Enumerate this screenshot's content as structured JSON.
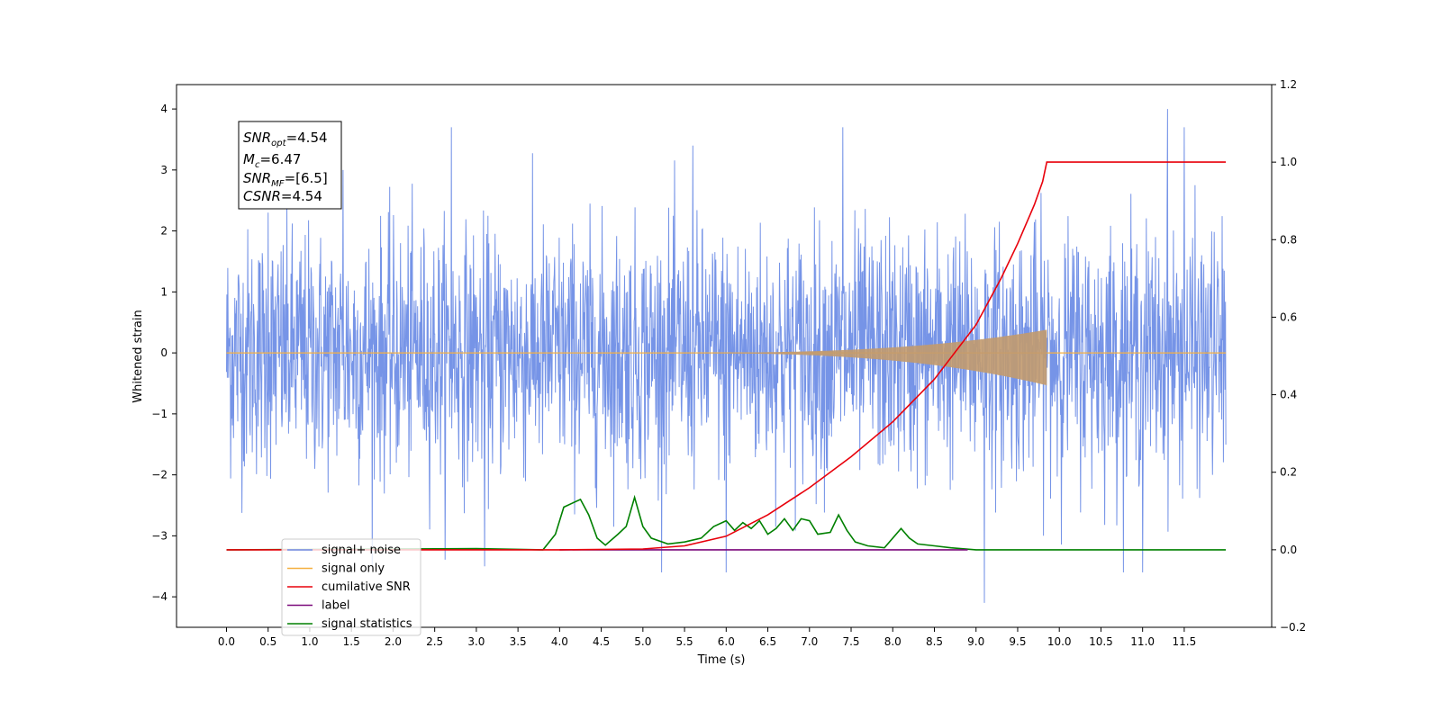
{
  "chart_data": {
    "type": "line",
    "xlabel": "Time (s)",
    "ylabel": "Whitened strain",
    "xlim": [
      -0.6,
      12.55
    ],
    "ylim": [
      -4.5,
      4.4
    ],
    "y2lim": [
      -0.2,
      1.2
    ],
    "x_ticks": [
      "0.0",
      "0.5",
      "1.0",
      "1.5",
      "2.0",
      "2.5",
      "3.0",
      "3.5",
      "4.0",
      "4.5",
      "5.0",
      "5.5",
      "6.0",
      "6.5",
      "7.0",
      "7.5",
      "8.0",
      "8.5",
      "9.0",
      "9.5",
      "10.0",
      "10.5",
      "11.0",
      "11.5"
    ],
    "y_ticks": [
      "4",
      "3",
      "2",
      "1",
      "0",
      "−1",
      "−2",
      "−3",
      "−4"
    ],
    "y2_ticks": [
      "1.2",
      "1.0",
      "0.8",
      "0.6",
      "0.4",
      "0.2",
      "0.0",
      "−0.2"
    ],
    "annotation": {
      "snr_opt": "=4.54",
      "mc": "=6.47",
      "snr_mf": "=[6.5]",
      "csnr": "=4.54"
    },
    "legend_position": "lower-left",
    "grid": false,
    "series": [
      {
        "name": "signal+ noise",
        "axis": "left",
        "color": "#6f8ee6",
        "x_range": [
          0,
          12.0
        ],
        "noise_sigma": 1.0,
        "peaks": [
          [
            0.5,
            2.3
          ],
          [
            1.4,
            3.0
          ],
          [
            2.7,
            3.7
          ],
          [
            5.6,
            3.4
          ],
          [
            7.4,
            3.7
          ],
          [
            11.3,
            4.0
          ],
          [
            11.5,
            3.7
          ],
          [
            9.1,
            -4.1
          ],
          [
            11.0,
            -3.6
          ],
          [
            6.0,
            -3.6
          ],
          [
            3.1,
            -3.5
          ]
        ]
      },
      {
        "name": "signal only",
        "axis": "left",
        "color": "#f5b041",
        "chirp_start": 5.0,
        "chirp_end": 9.85,
        "max_amplitude": 0.38
      },
      {
        "name": "cumilative SNR",
        "axis": "right",
        "color": "#e8000b",
        "x": [
          0.0,
          4.0,
          5.0,
          5.5,
          6.0,
          6.5,
          7.0,
          7.5,
          8.0,
          8.5,
          9.0,
          9.3,
          9.5,
          9.7,
          9.8,
          9.85,
          10.0,
          11.0,
          12.0
        ],
        "y": [
          0.0,
          0.0,
          0.002,
          0.01,
          0.035,
          0.09,
          0.16,
          0.24,
          0.33,
          0.44,
          0.58,
          0.7,
          0.79,
          0.89,
          0.95,
          1.0,
          1.0,
          1.0,
          1.0
        ]
      },
      {
        "name": "label",
        "axis": "right",
        "color": "#7b0a7b",
        "x": [
          4.0,
          8.9
        ],
        "y": [
          0.0,
          0.0
        ]
      },
      {
        "name": "signal statistics",
        "axis": "right",
        "color": "#008000",
        "x": [
          0.0,
          3.0,
          3.8,
          3.95,
          4.05,
          4.15,
          4.25,
          4.35,
          4.45,
          4.55,
          4.7,
          4.8,
          4.9,
          5.0,
          5.1,
          5.3,
          5.5,
          5.7,
          5.85,
          6.0,
          6.1,
          6.2,
          6.3,
          6.4,
          6.5,
          6.6,
          6.7,
          6.8,
          6.9,
          7.0,
          7.1,
          7.25,
          7.35,
          7.45,
          7.55,
          7.7,
          7.9,
          8.1,
          8.2,
          8.3,
          8.5,
          8.7,
          9.0,
          10.0,
          12.0
        ],
        "y": [
          0.0,
          0.003,
          0.0,
          0.04,
          0.11,
          0.12,
          0.13,
          0.09,
          0.03,
          0.012,
          0.04,
          0.06,
          0.135,
          0.06,
          0.03,
          0.015,
          0.02,
          0.03,
          0.06,
          0.075,
          0.05,
          0.07,
          0.055,
          0.075,
          0.04,
          0.055,
          0.08,
          0.05,
          0.08,
          0.075,
          0.04,
          0.045,
          0.09,
          0.05,
          0.02,
          0.01,
          0.005,
          0.055,
          0.03,
          0.015,
          0.01,
          0.005,
          0.0,
          0.0,
          0.0
        ]
      }
    ]
  }
}
